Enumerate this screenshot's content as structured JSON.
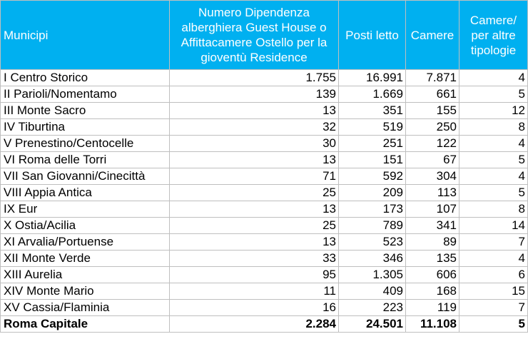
{
  "columns": [
    "Municipi",
    "Numero Dipendenza alberghiera Guest House o Affittacamere Ostello per la gioventù Residence",
    "Posti letto",
    "Camere",
    "Camere/ per altre tipologie"
  ],
  "rows": [
    [
      "I Centro Storico",
      "1.755",
      "16.991",
      "7.871",
      "4"
    ],
    [
      "II Parioli/Nomentamo",
      "139",
      "1.669",
      "661",
      "5"
    ],
    [
      "III Monte Sacro",
      "13",
      "351",
      "155",
      "12"
    ],
    [
      "IV Tiburtina",
      "32",
      "519",
      "250",
      "8"
    ],
    [
      "V Prenestino/Centocelle",
      "30",
      "251",
      "122",
      "4"
    ],
    [
      "VI Roma delle Torri",
      "13",
      "151",
      "67",
      "5"
    ],
    [
      "VII San Giovanni/Cinecittà",
      "71",
      "592",
      "304",
      "4"
    ],
    [
      "VIII Appia Antica",
      "25",
      "209",
      "113",
      "5"
    ],
    [
      "IX Eur",
      "13",
      "173",
      "107",
      "8"
    ],
    [
      "X Ostia/Acilia",
      "25",
      "789",
      "341",
      "14"
    ],
    [
      "XI Arvalia/Portuense",
      "13",
      "523",
      "89",
      "7"
    ],
    [
      "XII Monte Verde",
      "33",
      "346",
      "135",
      "4"
    ],
    [
      "XIII Aurelia",
      "95",
      "1.305",
      "606",
      "6"
    ],
    [
      "XIV Monte Mario",
      "11",
      "409",
      "168",
      "15"
    ],
    [
      "XV Cassia/Flaminia",
      "16",
      "223",
      "119",
      "7"
    ]
  ],
  "total": [
    "Roma Capitale",
    "2.284",
    "24.501",
    "11.108",
    "5"
  ],
  "colors": {
    "header_bg": "#00b0f0",
    "header_text": "#ffffff",
    "grid": "#bfbfbf"
  }
}
